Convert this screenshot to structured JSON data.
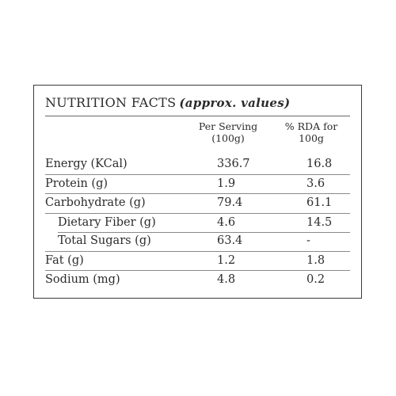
{
  "panel": {
    "title": "NUTRITION FACTS",
    "title_note": "(approx. values)",
    "columns": {
      "serving_line1": "Per Serving",
      "serving_line2": "(100g)",
      "rda_line1": "% RDA for",
      "rda_line2": "100g"
    },
    "rows": [
      {
        "label": "Energy (KCal)",
        "serving": "336.7",
        "rda": "16.8"
      },
      {
        "label": "Protein (g)",
        "serving": "1.9",
        "rda": "3.6"
      },
      {
        "label": "Carbohydrate (g)",
        "serving": "79.4",
        "rda": "61.1"
      },
      {
        "label": "Dietary Fiber (g)",
        "serving": "4.6",
        "rda": "14.5"
      },
      {
        "label": "Total Sugars (g)",
        "serving": "63.4",
        "rda": "-"
      },
      {
        "label": "Fat (g)",
        "serving": "1.2",
        "rda": "1.8"
      },
      {
        "label": "Sodium (mg)",
        "serving": "4.8",
        "rda": "0.2"
      }
    ]
  }
}
